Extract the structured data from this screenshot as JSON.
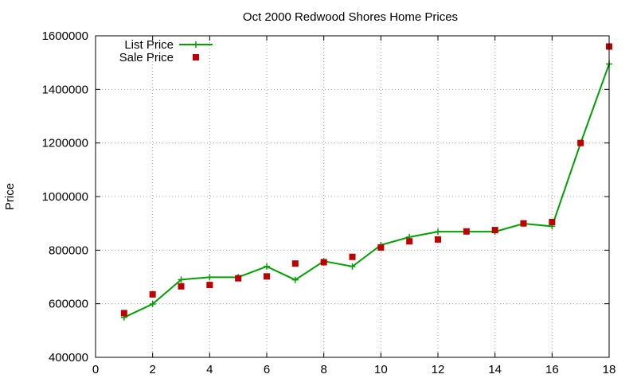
{
  "chart_data": {
    "type": "line",
    "title": "Oct 2000 Redwood Shores Home Prices",
    "xlabel": "",
    "ylabel": "Price",
    "xlim": [
      0,
      18
    ],
    "ylim": [
      400000,
      1600000
    ],
    "xticks": [
      0,
      2,
      4,
      6,
      8,
      10,
      12,
      14,
      16,
      18
    ],
    "yticks": [
      400000,
      600000,
      800000,
      1000000,
      1200000,
      1400000,
      1600000
    ],
    "grid": true,
    "legend_position": "top-left",
    "x": [
      1,
      2,
      3,
      4,
      5,
      6,
      7,
      8,
      9,
      10,
      11,
      12,
      13,
      14,
      15,
      16,
      17,
      18
    ],
    "series": [
      {
        "name": "List Price",
        "style": "lines+points",
        "color": "#00a000",
        "marker": "plus",
        "values": [
          549000,
          599000,
          690000,
          699000,
          699000,
          739000,
          689000,
          759000,
          739000,
          819000,
          849000,
          869000,
          869000,
          869000,
          899000,
          889000,
          1199000,
          1495000
        ]
      },
      {
        "name": "Sale Price",
        "style": "points",
        "color": "#c00000",
        "marker": "square",
        "values": [
          565000,
          635000,
          665000,
          670000,
          695000,
          702000,
          750000,
          755000,
          775000,
          810000,
          833000,
          840000,
          870000,
          875000,
          900000,
          905000,
          1200000,
          1560000
        ]
      }
    ]
  }
}
